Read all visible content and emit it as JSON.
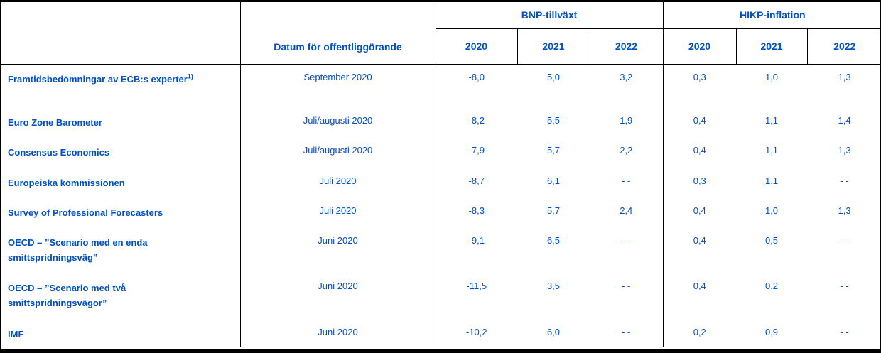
{
  "colors": {
    "text_blue": "#0050C8",
    "border_black": "#000000",
    "background": "#FFFFFF"
  },
  "header": {
    "date_col": "Datum för offentliggörande",
    "groups": [
      {
        "label": "BNP-tillväxt",
        "years": [
          "2020",
          "2021",
          "2022"
        ]
      },
      {
        "label": "HIKP-inflation",
        "years": [
          "2020",
          "2021",
          "2022"
        ]
      }
    ]
  },
  "rows": [
    {
      "label": "Framtidsbedömningar av ECB:s experter",
      "sup": "1)",
      "date": "September 2020",
      "values": [
        "-8,0",
        "5,0",
        "3,2",
        "0,3",
        "1,0",
        "1,3"
      ]
    },
    {
      "label": "Euro Zone Barometer",
      "date": "Juli/augusti 2020",
      "values": [
        "-8,2",
        "5,5",
        "1,9",
        "0,4",
        "1,1",
        "1,4"
      ]
    },
    {
      "label": "Consensus Economics",
      "date": "Juli/augusti 2020",
      "values": [
        "-7,9",
        "5,7",
        "2,2",
        "0,4",
        "1,1",
        "1,3"
      ]
    },
    {
      "label": "Europeiska kommissionen",
      "date": "Juli 2020",
      "values": [
        "-8,7",
        "6,1",
        "- -",
        "0,3",
        "1,1",
        "- -"
      ]
    },
    {
      "label": "Survey of Professional Forecasters",
      "date": "Juli 2020",
      "values": [
        "-8,3",
        "5,7",
        "2,4",
        "0,4",
        "1,0",
        "1,3"
      ]
    },
    {
      "label": "OECD – ”Scenario med en enda smittspridningsväg”",
      "date": "Juni 2020",
      "values": [
        "-9,1",
        "6,5",
        "- -",
        "0,4",
        "0,5",
        "- -"
      ]
    },
    {
      "label": "OECD – ”Scenario med två smittspridningsvägor”",
      "date": "Juni 2020",
      "values": [
        "-11,5",
        "3,5",
        "- -",
        "0,4",
        "0,2",
        "- -"
      ]
    },
    {
      "label": "IMF",
      "date": "Juni 2020",
      "values": [
        "-10,2",
        "6,0",
        "- -",
        "0,2",
        "0,9",
        "- -"
      ]
    }
  ]
}
